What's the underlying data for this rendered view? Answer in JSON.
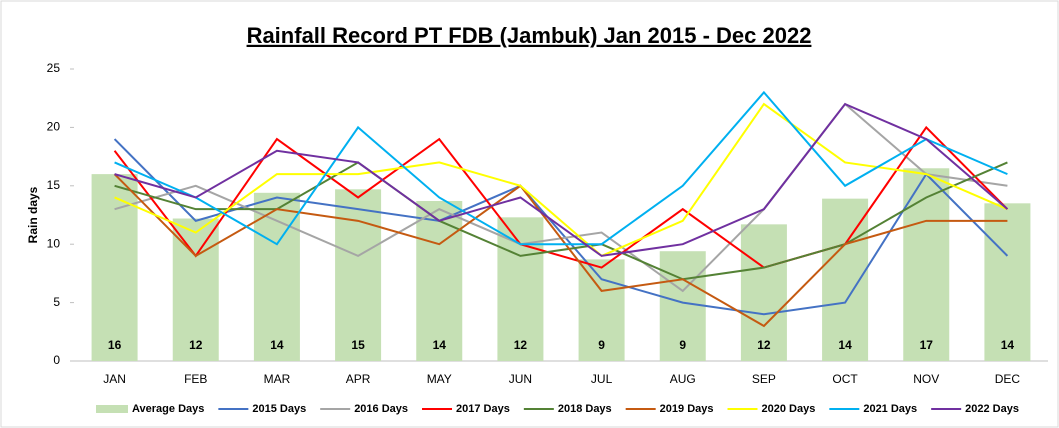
{
  "chart_data": {
    "type": "bar-line",
    "title": "Rainfall Record PT FDB (Jambuk) Jan 2015 - Dec 2022",
    "y_label": "Rain days",
    "categories": [
      "JAN",
      "FEB",
      "MAR",
      "APR",
      "MAY",
      "JUN",
      "JUL",
      "AUG",
      "SEP",
      "OCT",
      "NOV",
      "DEC"
    ],
    "ylim": [
      0,
      25
    ],
    "yticks": [
      0,
      5,
      10,
      15,
      20,
      25
    ],
    "bars": {
      "name": "Average Days",
      "color": "#c5e0b4",
      "values": [
        16.0,
        12.2,
        14.4,
        14.7,
        13.7,
        12.3,
        8.7,
        9.4,
        11.7,
        13.9,
        16.5,
        13.5
      ],
      "value_labels": [
        "16",
        "12",
        "14",
        "15",
        "14",
        "12",
        "9",
        "9",
        "12",
        "14",
        "17",
        "14"
      ]
    },
    "series": [
      {
        "name": "2015 Days",
        "color": "#4472c4",
        "values": [
          19,
          12,
          14,
          13,
          12,
          15,
          7,
          5,
          4,
          5,
          16,
          9
        ]
      },
      {
        "name": "2016 Days",
        "color": "#a5a5a5",
        "values": [
          13,
          15,
          12,
          9,
          13,
          10,
          11,
          6,
          13,
          22,
          16,
          15
        ]
      },
      {
        "name": "2017 Days",
        "color": "#ff0000",
        "values": [
          18,
          9,
          19,
          14,
          19,
          10,
          8,
          13,
          8,
          10,
          20,
          13
        ]
      },
      {
        "name": "2018 Days",
        "color": "#548235",
        "values": [
          15,
          13,
          13,
          17,
          12,
          9,
          10,
          7,
          8,
          10,
          14,
          17
        ]
      },
      {
        "name": "2019 Days",
        "color": "#c55a11",
        "values": [
          16,
          9,
          13,
          12,
          10,
          15,
          6,
          7,
          3,
          10,
          12,
          12
        ]
      },
      {
        "name": "2020 Days",
        "color": "#ffff00",
        "values": [
          14,
          11,
          16,
          16,
          17,
          15,
          9,
          12,
          22,
          17,
          16,
          13
        ]
      },
      {
        "name": "2021 Days",
        "color": "#00b0f0",
        "values": [
          17,
          14,
          10,
          20,
          14,
          10,
          10,
          15,
          23,
          15,
          19,
          16
        ]
      },
      {
        "name": "2022 Days",
        "color": "#7030a0",
        "values": [
          16,
          14,
          18,
          17,
          12,
          14,
          9,
          10,
          13,
          22,
          19,
          13
        ]
      }
    ]
  }
}
